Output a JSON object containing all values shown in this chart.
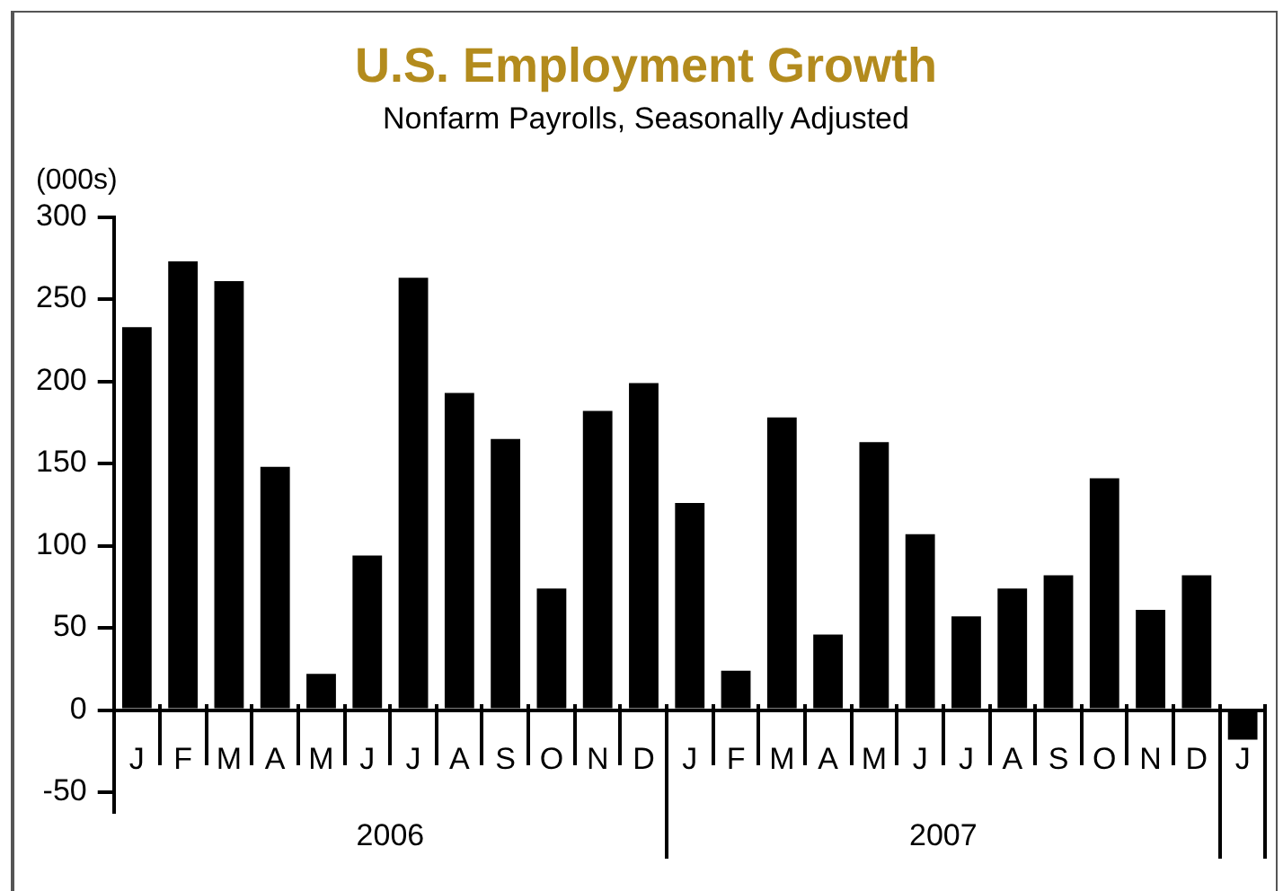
{
  "chart_data": {
    "type": "bar",
    "title": "U.S. Employment Growth",
    "subtitle": "Nonfarm Payrolls, Seasonally Adjusted",
    "ylabel": "(000s)",
    "categories": [
      "J",
      "F",
      "M",
      "A",
      "M",
      "J",
      "J",
      "A",
      "S",
      "O",
      "N",
      "D",
      "J",
      "F",
      "M",
      "A",
      "M",
      "J",
      "J",
      "A",
      "S",
      "O",
      "N",
      "D",
      "J"
    ],
    "values": [
      233,
      273,
      261,
      148,
      22,
      94,
      263,
      193,
      165,
      74,
      182,
      199,
      126,
      24,
      178,
      46,
      163,
      107,
      57,
      74,
      82,
      141,
      61,
      82,
      -18
    ],
    "color": "#000000",
    "ylim": [
      -62,
      300
    ],
    "yticks": [
      -50,
      0,
      50,
      100,
      150,
      200,
      250,
      300
    ],
    "grid": false,
    "legend": false,
    "annotations": [
      "2006",
      "2007"
    ]
  }
}
